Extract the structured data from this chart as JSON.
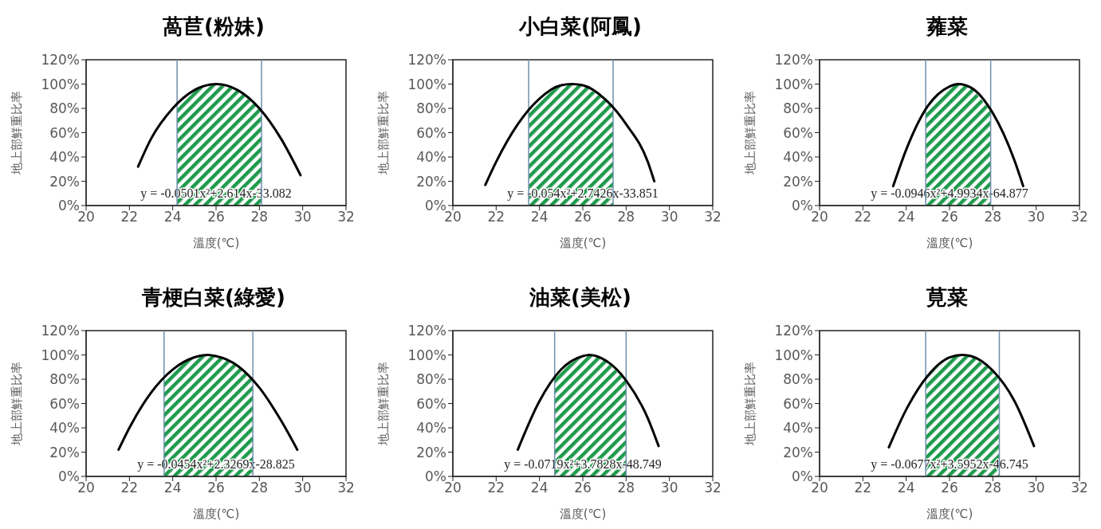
{
  "chart_data": [
    {
      "type": "line",
      "title": "萵苣(粉妹)",
      "xlabel": "溫度(℃)",
      "ylabel": "地上部鮮重比率",
      "xlim": [
        20,
        32
      ],
      "xticks": [
        20,
        22,
        24,
        26,
        28,
        30,
        32
      ],
      "ylim": [
        0,
        120
      ],
      "yticks": [
        {
          "value": 0,
          "label": "0%"
        },
        {
          "value": 20,
          "label": "20%"
        },
        {
          "value": 40,
          "label": "40%"
        },
        {
          "value": 60,
          "label": "60%"
        },
        {
          "value": 80,
          "label": "80%"
        },
        {
          "value": 100,
          "label": "100%"
        },
        {
          "value": 120,
          "label": "120%"
        }
      ],
      "series": [
        {
          "color": "#000000",
          "x": [
            22.4,
            23,
            24,
            25,
            26,
            27,
            28,
            29,
            29.9
          ],
          "values": [
            32,
            55,
            80,
            95,
            100,
            95,
            80,
            55,
            25
          ]
        }
      ],
      "bands": [
        {
          "axis": "x",
          "from": 24.2,
          "to": 28.1,
          "color": "#1e9a4c"
        }
      ],
      "ref_lines": [
        {
          "axis": "x",
          "value": 24.2,
          "color": "#6f8fae"
        },
        {
          "axis": "x",
          "value": 28.1,
          "color": "#6f8fae"
        }
      ],
      "annotations": [
        "y = -0.0501x²+2.614x-33.082"
      ]
    },
    {
      "type": "line",
      "title": "小白菜(阿鳳)",
      "xlabel": "溫度(℃)",
      "ylabel": "地上部鮮重比率",
      "xlim": [
        20,
        32
      ],
      "xticks": [
        20,
        22,
        24,
        26,
        28,
        30,
        32
      ],
      "ylim": [
        0,
        120
      ],
      "yticks": [
        {
          "value": 0,
          "label": "0%"
        },
        {
          "value": 20,
          "label": "20%"
        },
        {
          "value": 40,
          "label": "40%"
        },
        {
          "value": 60,
          "label": "60%"
        },
        {
          "value": 80,
          "label": "80%"
        },
        {
          "value": 100,
          "label": "100%"
        },
        {
          "value": 120,
          "label": "120%"
        }
      ],
      "series": [
        {
          "color": "#000000",
          "x": [
            21.5,
            22,
            23,
            24,
            25,
            25.5,
            26,
            27,
            28,
            29,
            29.3
          ],
          "values": [
            17,
            36,
            67,
            88,
            99,
            100,
            99,
            88,
            67,
            36,
            20
          ]
        }
      ],
      "bands": [
        {
          "axis": "x",
          "from": 23.5,
          "to": 27.4,
          "color": "#1e9a4c"
        }
      ],
      "ref_lines": [
        {
          "axis": "x",
          "value": 23.5,
          "color": "#6f8fae"
        },
        {
          "axis": "x",
          "value": 27.4,
          "color": "#6f8fae"
        }
      ],
      "annotations": [
        "y = -0.054x²+2.7426x-33.851"
      ]
    },
    {
      "type": "line",
      "title": "蕹菜",
      "xlabel": "溫度(℃)",
      "ylabel": "地上部鮮重比率",
      "xlim": [
        20,
        32
      ],
      "xticks": [
        20,
        22,
        24,
        26,
        28,
        30,
        32
      ],
      "ylim": [
        0,
        120
      ],
      "yticks": [
        {
          "value": 0,
          "label": "0%"
        },
        {
          "value": 20,
          "label": "20%"
        },
        {
          "value": 40,
          "label": "40%"
        },
        {
          "value": 60,
          "label": "60%"
        },
        {
          "value": 80,
          "label": "80%"
        },
        {
          "value": 100,
          "label": "100%"
        },
        {
          "value": 120,
          "label": "120%"
        }
      ],
      "series": [
        {
          "color": "#000000",
          "x": [
            23.4,
            24,
            25,
            26,
            26.4,
            27,
            28,
            29,
            29.4
          ],
          "values": [
            16,
            46,
            82,
            98,
            100,
            97,
            76,
            37,
            16
          ]
        }
      ],
      "bands": [
        {
          "axis": "x",
          "from": 24.9,
          "to": 27.9,
          "color": "#1e9a4c"
        }
      ],
      "ref_lines": [
        {
          "axis": "x",
          "value": 24.9,
          "color": "#6f8fae"
        },
        {
          "axis": "x",
          "value": 27.9,
          "color": "#6f8fae"
        }
      ],
      "annotations": [
        "y = -0.0946x²+4.9934x-64.877"
      ]
    },
    {
      "type": "line",
      "title": "青梗白菜(綠愛)",
      "xlabel": "溫度(℃)",
      "ylabel": "地上部鮮重比率",
      "xlim": [
        20,
        32
      ],
      "xticks": [
        20,
        22,
        24,
        26,
        28,
        30,
        32
      ],
      "ylim": [
        0,
        120
      ],
      "yticks": [
        {
          "value": 0,
          "label": "0%"
        },
        {
          "value": 20,
          "label": "20%"
        },
        {
          "value": 40,
          "label": "40%"
        },
        {
          "value": 60,
          "label": "60%"
        },
        {
          "value": 80,
          "label": "80%"
        },
        {
          "value": 100,
          "label": "100%"
        },
        {
          "value": 120,
          "label": "120%"
        }
      ],
      "series": [
        {
          "color": "#000000",
          "x": [
            21.5,
            22,
            23,
            24,
            25,
            25.6,
            26,
            27,
            28,
            29,
            29.75
          ],
          "values": [
            22,
            40,
            69,
            88,
            98,
            100,
            99,
            91,
            73,
            46,
            22
          ]
        }
      ],
      "bands": [
        {
          "axis": "x",
          "from": 23.6,
          "to": 27.7,
          "color": "#1e9a4c"
        }
      ],
      "ref_lines": [
        {
          "axis": "x",
          "value": 23.6,
          "color": "#6f8fae"
        },
        {
          "axis": "x",
          "value": 27.7,
          "color": "#6f8fae"
        }
      ],
      "annotations": [
        "y = -0.0454x²+2.3269x-28.825"
      ]
    },
    {
      "type": "line",
      "title": "油菜(美松)",
      "xlabel": "溫度(℃)",
      "ylabel": "地上部鮮重比率",
      "xlim": [
        20,
        32
      ],
      "xticks": [
        20,
        22,
        24,
        26,
        28,
        30,
        32
      ],
      "ylim": [
        0,
        120
      ],
      "yticks": [
        {
          "value": 0,
          "label": "0%"
        },
        {
          "value": 20,
          "label": "20%"
        },
        {
          "value": 40,
          "label": "40%"
        },
        {
          "value": 60,
          "label": "60%"
        },
        {
          "value": 80,
          "label": "80%"
        },
        {
          "value": 100,
          "label": "100%"
        },
        {
          "value": 120,
          "label": "120%"
        }
      ],
      "series": [
        {
          "color": "#000000",
          "x": [
            23,
            24,
            25,
            26,
            26.3,
            27,
            28,
            29,
            29.5
          ],
          "values": [
            22,
            62,
            88,
            99,
            100,
            96,
            79,
            48,
            25
          ]
        }
      ],
      "bands": [
        {
          "axis": "x",
          "from": 24.7,
          "to": 28.0,
          "color": "#1e9a4c"
        }
      ],
      "ref_lines": [
        {
          "axis": "x",
          "value": 24.7,
          "color": "#6f8fae"
        },
        {
          "axis": "x",
          "value": 28.0,
          "color": "#6f8fae"
        }
      ],
      "annotations": [
        "y = -0.0719x²+3.7828x-48.749"
      ]
    },
    {
      "type": "line",
      "title": "莧菜",
      "xlabel": "溫度(℃)",
      "ylabel": "地上部鮮重比率",
      "xlim": [
        20,
        32
      ],
      "xticks": [
        20,
        22,
        24,
        26,
        28,
        30,
        32
      ],
      "ylim": [
        0,
        120
      ],
      "yticks": [
        {
          "value": 0,
          "label": "0%"
        },
        {
          "value": 20,
          "label": "20%"
        },
        {
          "value": 40,
          "label": "40%"
        },
        {
          "value": 60,
          "label": "60%"
        },
        {
          "value": 80,
          "label": "80%"
        },
        {
          "value": 100,
          "label": "100%"
        },
        {
          "value": 120,
          "label": "120%"
        }
      ],
      "series": [
        {
          "color": "#000000",
          "x": [
            23.2,
            24,
            25,
            26,
            26.6,
            27,
            28,
            29,
            29.9
          ],
          "values": [
            24,
            55,
            83,
            98,
            100,
            99,
            87,
            62,
            25
          ]
        }
      ],
      "bands": [
        {
          "axis": "x",
          "from": 24.9,
          "to": 28.3,
          "color": "#1e9a4c"
        }
      ],
      "ref_lines": [
        {
          "axis": "x",
          "value": 24.9,
          "color": "#6f8fae"
        },
        {
          "axis": "x",
          "value": 28.3,
          "color": "#6f8fae"
        }
      ],
      "annotations": [
        "y = -0.0677x²+3.5952x-46.745"
      ]
    }
  ]
}
